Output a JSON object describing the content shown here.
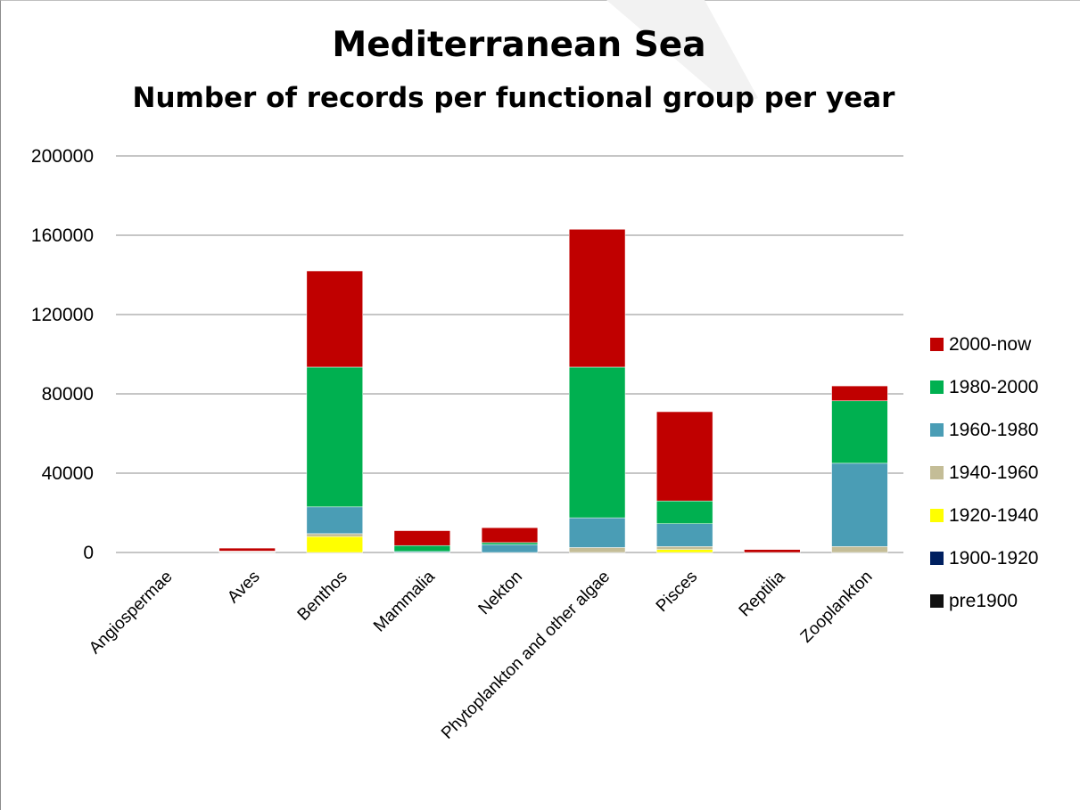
{
  "chart_data": {
    "type": "bar",
    "stacked": true,
    "title": "Mediterranean Sea",
    "subtitle": "Number of records per functional group per year",
    "xlabel": "",
    "ylabel": "",
    "ylim": [
      0,
      200000
    ],
    "yticks": [
      0,
      40000,
      80000,
      120000,
      160000,
      200000
    ],
    "grid": true,
    "legend_position": "right",
    "categories": [
      "Angiospermae",
      "Aves",
      "Benthos",
      "Mammalia",
      "Nekton",
      "Phytoplankton and other algae",
      "Pisces",
      "Reptilia",
      "Zooplankton"
    ],
    "series": [
      {
        "name": "pre1900",
        "color": "#111111",
        "values": [
          0,
          0,
          0,
          0,
          0,
          0,
          0,
          0,
          0
        ]
      },
      {
        "name": "1900-1920",
        "color": "#002060",
        "values": [
          0,
          0,
          0,
          0,
          0,
          0,
          0,
          0,
          0
        ]
      },
      {
        "name": "1920-1940",
        "color": "#ffff00",
        "values": [
          0,
          0,
          8000,
          0,
          0,
          0,
          1500,
          0,
          0
        ]
      },
      {
        "name": "1940-1960",
        "color": "#c4bd97",
        "values": [
          0,
          300,
          1500,
          0,
          0,
          2500,
          1500,
          0,
          3000
        ]
      },
      {
        "name": "1960-1980",
        "color": "#4a9db5",
        "values": [
          0,
          200,
          13500,
          500,
          4000,
          15000,
          11500,
          0,
          42000
        ]
      },
      {
        "name": "1980-2000",
        "color": "#00b050",
        "values": [
          0,
          200,
          70500,
          3000,
          1000,
          76000,
          11500,
          0,
          31500
        ]
      },
      {
        "name": "2000-now",
        "color": "#c00000",
        "values": [
          0,
          1500,
          48500,
          7500,
          7500,
          69500,
          45000,
          1500,
          7500
        ]
      }
    ]
  }
}
